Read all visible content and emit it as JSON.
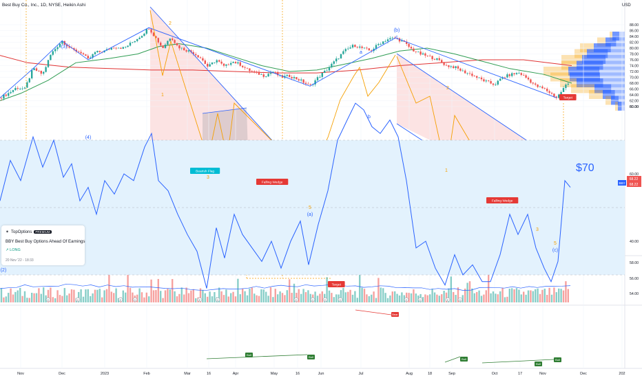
{
  "header": {
    "title": "Best Buy Co., Inc., 1D, NYSE, Heikin Ashi",
    "currency": "USD"
  },
  "colors": {
    "bull": "#26a69a",
    "bear": "#ef5350",
    "wave": "#2962ff",
    "orange": "#f59f00",
    "ma_green": "#2e9c52",
    "ma_red": "#e03131",
    "rsi": "#2962ff",
    "rsi_band": "#e3f2fd"
  },
  "chart_data": {
    "type": "candlestick",
    "title": "Best Buy Co., Inc., 1D, NYSE, Heikin Ashi",
    "price_axis": {
      "ticks": [
        88,
        86,
        84,
        82,
        80,
        78,
        76,
        74,
        72,
        70,
        68,
        66,
        64,
        62,
        60
      ],
      "ylim": [
        59,
        90
      ]
    },
    "volume_axis": {
      "ticks": [
        58,
        56,
        54
      ]
    },
    "rsi_axis": {
      "ticks": [
        80,
        60,
        40
      ],
      "ylim": [
        20,
        85
      ]
    },
    "x_ticks": [
      "Nov",
      "Dec",
      "2023",
      "Feb",
      "Mar",
      "16",
      "Apr",
      "May",
      "16",
      "Jun",
      "Jul",
      "Aug",
      "18",
      "Sep",
      "Oct",
      "17",
      "Nov",
      "Dec",
      "202"
    ],
    "price_path": [
      [
        0,
        63.0
      ],
      [
        12,
        64.5
      ],
      [
        24,
        66.5
      ],
      [
        36,
        66.0
      ],
      [
        48,
        73.0
      ],
      [
        62,
        71.0
      ],
      [
        74,
        78.0
      ],
      [
        90,
        82.5
      ],
      [
        104,
        79.5
      ],
      [
        118,
        78.5
      ],
      [
        128,
        76.0
      ],
      [
        138,
        78.5
      ],
      [
        152,
        79.0
      ],
      [
        166,
        80.5
      ],
      [
        180,
        80.0
      ],
      [
        192,
        82.0
      ],
      [
        206,
        84.5
      ],
      [
        216,
        87.0
      ],
      [
        226,
        83.5
      ],
      [
        236,
        80.0
      ],
      [
        248,
        84.0
      ],
      [
        258,
        80.5
      ],
      [
        268,
        79.5
      ],
      [
        280,
        78.5
      ],
      [
        292,
        76.5
      ],
      [
        302,
        73.5
      ],
      [
        314,
        76.0
      ],
      [
        326,
        73.5
      ],
      [
        336,
        75.5
      ],
      [
        348,
        74.5
      ],
      [
        360,
        72.5
      ],
      [
        372,
        71.5
      ],
      [
        384,
        70.5
      ],
      [
        396,
        72.0
      ],
      [
        408,
        70.0
      ],
      [
        420,
        70.5
      ],
      [
        436,
        69.0
      ],
      [
        450,
        67.0
      ],
      [
        462,
        70.0
      ],
      [
        474,
        72.5
      ],
      [
        488,
        76.0
      ],
      [
        500,
        79.0
      ],
      [
        514,
        81.0
      ],
      [
        526,
        80.0
      ],
      [
        538,
        79.0
      ],
      [
        550,
        81.5
      ],
      [
        562,
        83.0
      ],
      [
        574,
        83.5
      ],
      [
        586,
        82.0
      ],
      [
        598,
        79.5
      ],
      [
        610,
        78.0
      ],
      [
        624,
        77.0
      ],
      [
        636,
        76.0
      ],
      [
        648,
        74.0
      ],
      [
        660,
        73.5
      ],
      [
        672,
        72.0
      ],
      [
        684,
        71.0
      ],
      [
        696,
        69.5
      ],
      [
        706,
        68.5
      ],
      [
        718,
        67.5
      ],
      [
        730,
        70.0
      ],
      [
        742,
        71.0
      ],
      [
        754,
        71.5
      ],
      [
        766,
        69.5
      ],
      [
        778,
        67.0
      ],
      [
        790,
        66.0
      ],
      [
        800,
        64.5
      ],
      [
        808,
        63.0
      ],
      [
        816,
        65.5
      ],
      [
        822,
        67.5
      ],
      [
        828,
        68.2
      ]
    ],
    "ma200": [
      [
        0,
        77.5
      ],
      [
        40,
        75.0
      ],
      [
        100,
        73.5
      ],
      [
        160,
        73.0
      ],
      [
        220,
        72.5
      ],
      [
        280,
        72.5
      ],
      [
        340,
        72.0
      ],
      [
        400,
        71.5
      ],
      [
        460,
        71.5
      ],
      [
        520,
        72.5
      ],
      [
        580,
        74.0
      ],
      [
        640,
        75.0
      ],
      [
        700,
        76.0
      ],
      [
        760,
        76.0
      ],
      [
        830,
        74.0
      ]
    ],
    "ma50": [
      [
        0,
        62.0
      ],
      [
        30,
        64.5
      ],
      [
        70,
        69.0
      ],
      [
        110,
        75.0
      ],
      [
        160,
        76.5
      ],
      [
        200,
        78.0
      ],
      [
        230,
        80.5
      ],
      [
        260,
        81.5
      ],
      [
        300,
        80.0
      ],
      [
        340,
        77.0
      ],
      [
        380,
        74.0
      ],
      [
        420,
        72.0
      ],
      [
        460,
        72.5
      ],
      [
        500,
        74.5
      ],
      [
        540,
        76.5
      ],
      [
        580,
        79.0
      ],
      [
        620,
        80.0
      ],
      [
        660,
        78.0
      ],
      [
        700,
        75.5
      ],
      [
        740,
        73.0
      ],
      [
        790,
        71.0
      ],
      [
        830,
        68.0
      ]
    ],
    "volume_profile": [
      {
        "price": 84.0,
        "up": 4,
        "down": 18
      },
      {
        "price": 82.0,
        "up": 12,
        "down": 28
      },
      {
        "price": 80.0,
        "up": 20,
        "down": 45
      },
      {
        "price": 78.0,
        "up": 18,
        "down": 55
      },
      {
        "price": 76.0,
        "up": 30,
        "down": 62
      },
      {
        "price": 74.0,
        "up": 22,
        "down": 70
      },
      {
        "price": 72.0,
        "up": 36,
        "down": 82
      },
      {
        "price": 70.0,
        "up": 28,
        "down": 80
      },
      {
        "price": 68.0,
        "up": 24,
        "down": 70
      },
      {
        "price": 66.0,
        "up": 34,
        "down": 44
      },
      {
        "price": 64.0,
        "up": 20,
        "down": 32
      },
      {
        "price": 62.0,
        "up": 8,
        "down": 20
      },
      {
        "price": 60.0,
        "up": 4,
        "down": 10
      }
    ],
    "rsi_path": [
      [
        0,
        52
      ],
      [
        15,
        64
      ],
      [
        30,
        58
      ],
      [
        48,
        71
      ],
      [
        62,
        62
      ],
      [
        78,
        70
      ],
      [
        92,
        59
      ],
      [
        104,
        63
      ],
      [
        116,
        52
      ],
      [
        128,
        56
      ],
      [
        140,
        48
      ],
      [
        152,
        58
      ],
      [
        166,
        54
      ],
      [
        180,
        60
      ],
      [
        194,
        58
      ],
      [
        210,
        68
      ],
      [
        220,
        72
      ],
      [
        230,
        58
      ],
      [
        244,
        55
      ],
      [
        258,
        48
      ],
      [
        272,
        42
      ],
      [
        286,
        37
      ],
      [
        300,
        26
      ],
      [
        314,
        44
      ],
      [
        326,
        35
      ],
      [
        340,
        48
      ],
      [
        352,
        42
      ],
      [
        366,
        38
      ],
      [
        380,
        34
      ],
      [
        394,
        40
      ],
      [
        408,
        32
      ],
      [
        422,
        40
      ],
      [
        436,
        46
      ],
      [
        448,
        33
      ],
      [
        462,
        45
      ],
      [
        476,
        55
      ],
      [
        490,
        70
      ],
      [
        504,
        76
      ],
      [
        516,
        81
      ],
      [
        528,
        79
      ],
      [
        540,
        74
      ],
      [
        552,
        72
      ],
      [
        566,
        76
      ],
      [
        578,
        71
      ],
      [
        590,
        58
      ],
      [
        604,
        38
      ],
      [
        618,
        40
      ],
      [
        632,
        32
      ],
      [
        646,
        27
      ],
      [
        660,
        36
      ],
      [
        672,
        30
      ],
      [
        686,
        33
      ],
      [
        700,
        28
      ],
      [
        712,
        28
      ],
      [
        726,
        36
      ],
      [
        740,
        48
      ],
      [
        752,
        42
      ],
      [
        766,
        48
      ],
      [
        778,
        38
      ],
      [
        790,
        32
      ],
      [
        800,
        28
      ],
      [
        810,
        34
      ],
      [
        820,
        58
      ],
      [
        828,
        56
      ]
    ],
    "legend": [],
    "annotations": {
      "wave_labels": [
        "(3)",
        "(4)",
        "(2)",
        "(b)",
        "(a)",
        "(c)",
        "a",
        "b",
        "c"
      ],
      "orange_numbers": [
        "2",
        "1",
        "3",
        "5",
        "2",
        "1",
        "3",
        "5"
      ],
      "flags": [
        "Bearish Flag",
        "Falling Wedge",
        "Falling Wedge",
        "Target",
        "Target"
      ],
      "rsi_flags": [
        "Bull",
        "Bull",
        "Bull",
        "Bull",
        "Bull",
        "Bear"
      ],
      "target_price": "$70",
      "price_tags": [
        "68.22",
        "68.22"
      ],
      "ticker_tag": "BBY",
      "event_markers": [
        "E",
        "D",
        "E",
        "D",
        "E",
        "D",
        "E",
        "D",
        "E",
        "D",
        "E",
        "D",
        "E",
        "D"
      ]
    }
  },
  "idea_card": {
    "author": "TopOptions",
    "badge": "PREMIUM",
    "title": "BBY Best Buy Options Ahead Of Earnings",
    "direction": "LONG",
    "date": "20 Nov '22 - 18:33"
  }
}
